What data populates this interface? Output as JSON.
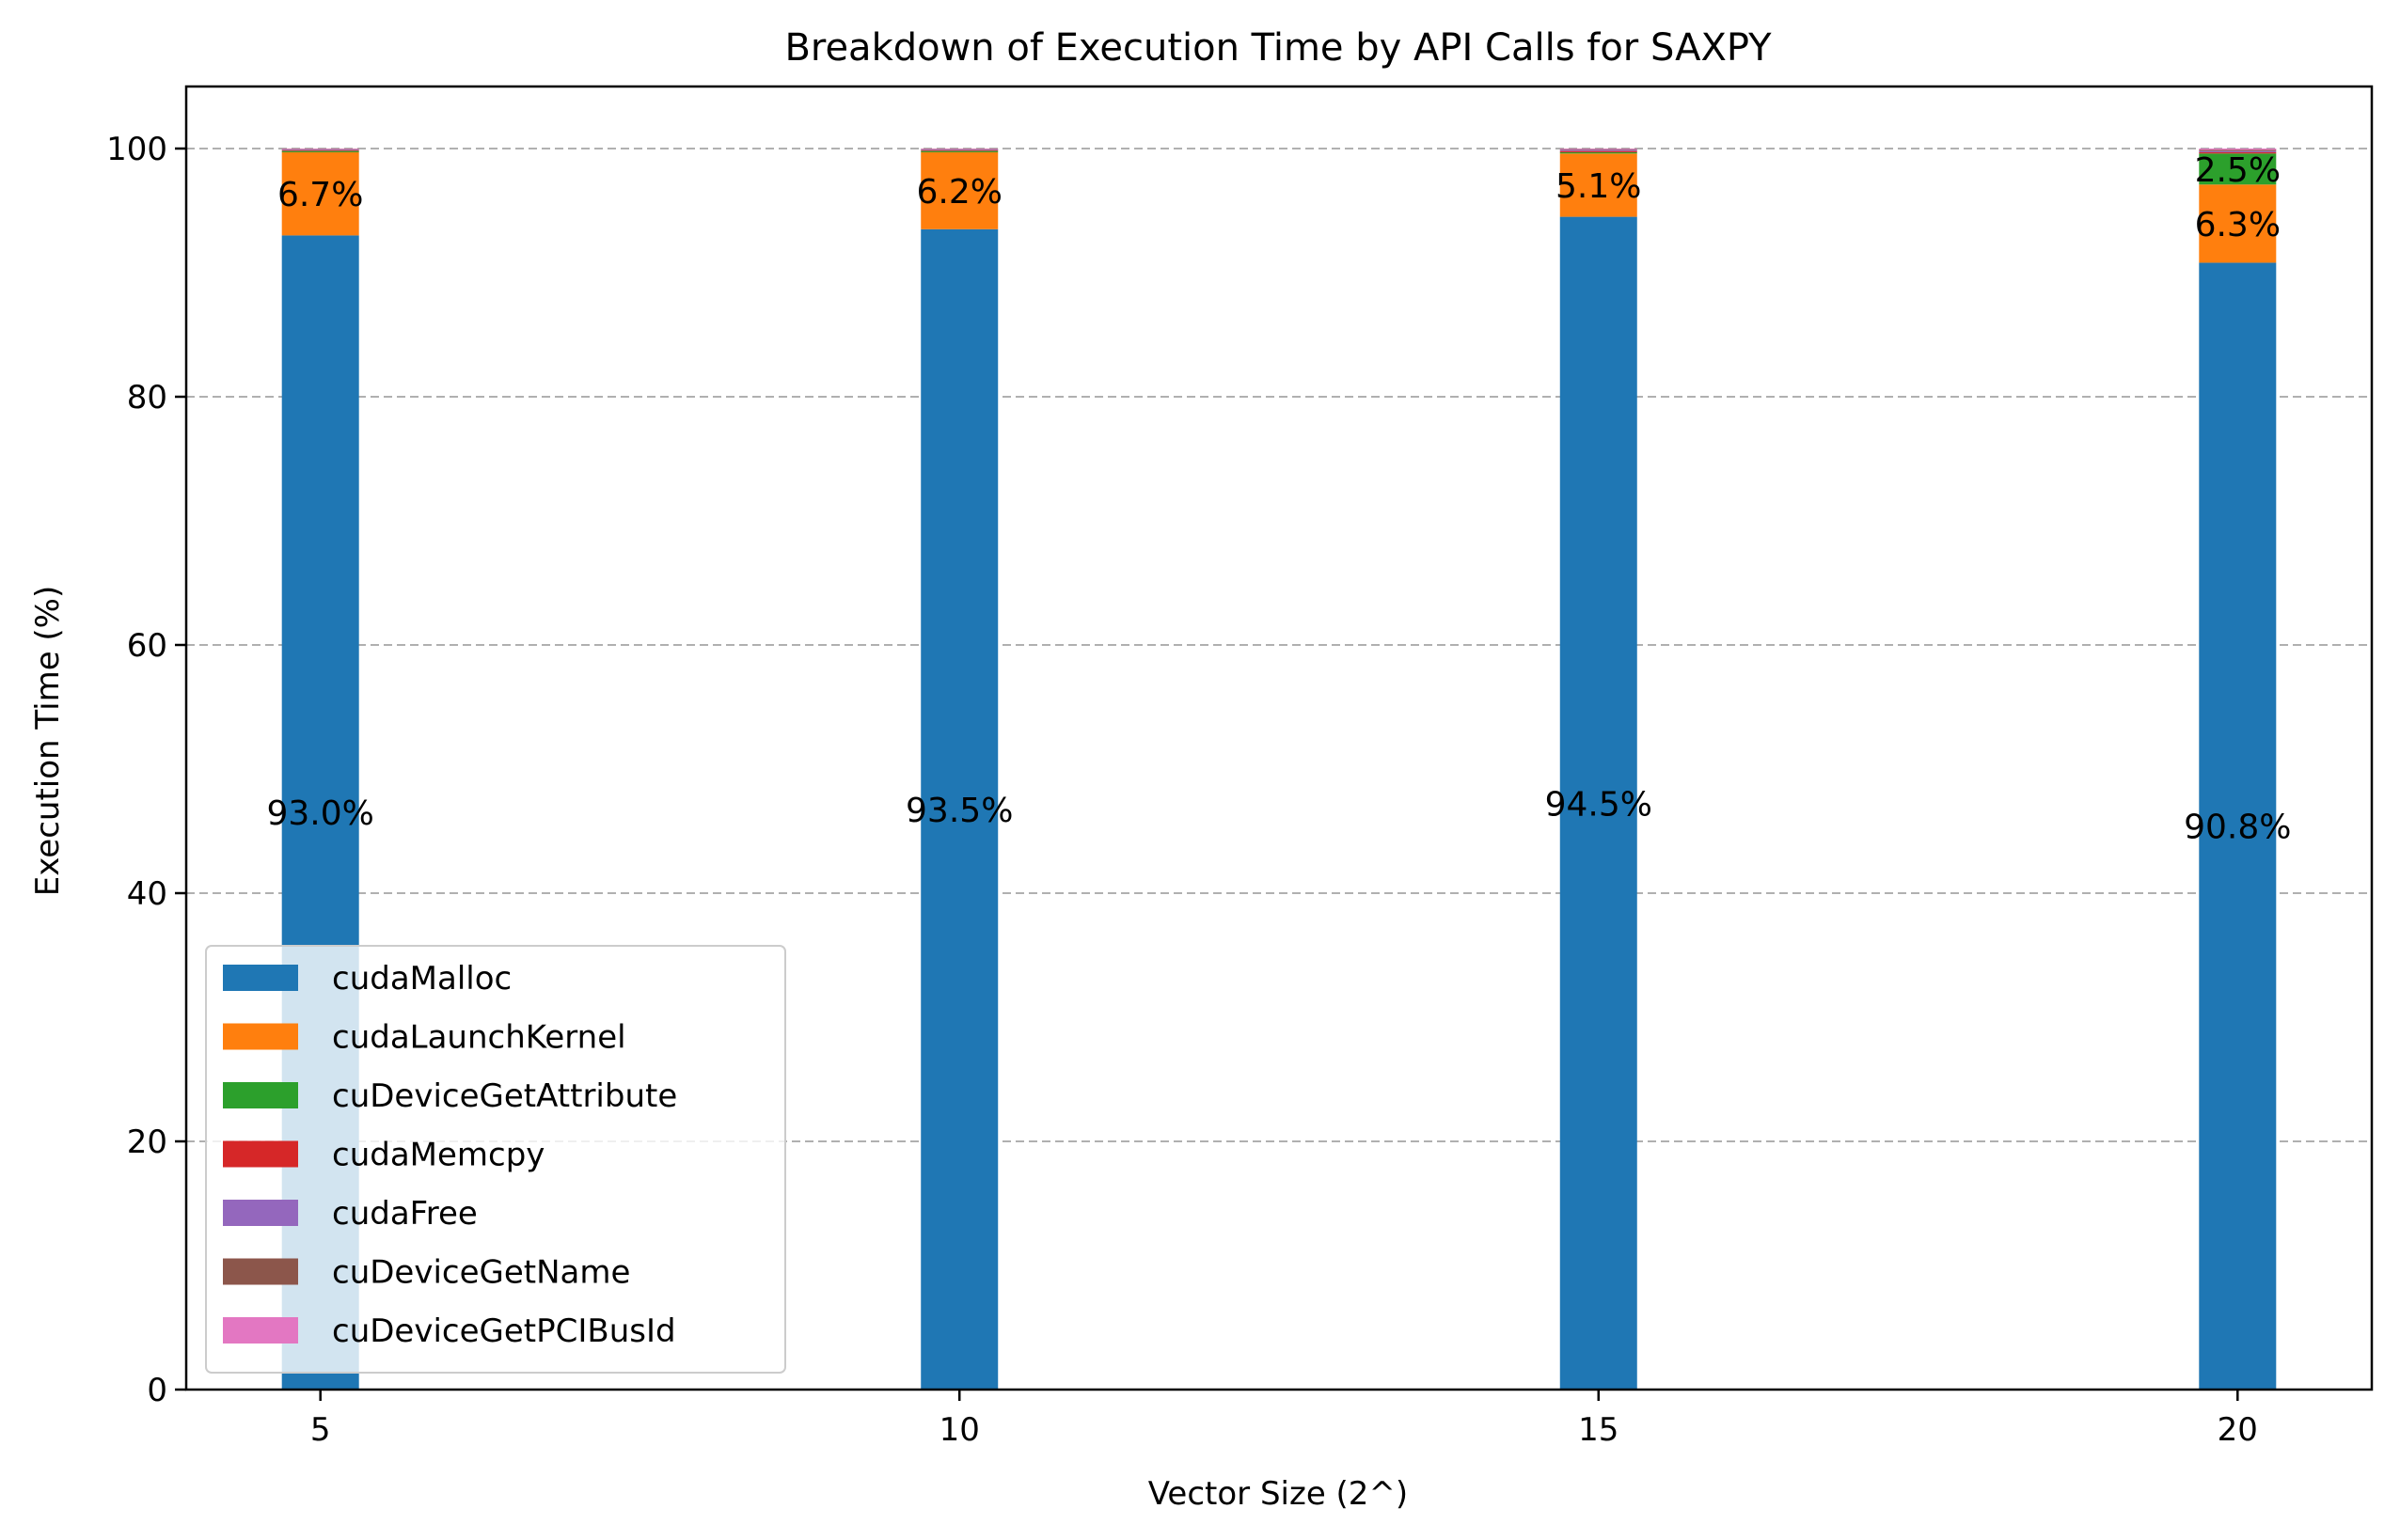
{
  "chart_data": {
    "type": "bar",
    "stacked": true,
    "title": "Breakdown of Execution Time by API Calls for SAXPY",
    "xlabel": "Vector Size (2^)",
    "ylabel": "Execution Time (%)",
    "categories": [
      "5",
      "10",
      "15",
      "20"
    ],
    "x": [
      5,
      10,
      15,
      20
    ],
    "xlim": [
      3.95,
      21.05
    ],
    "ylim": [
      0,
      105
    ],
    "yticks": [
      "0",
      "20",
      "40",
      "60",
      "80",
      "100"
    ],
    "grid": "y, dashed",
    "legend_position": "lower-left",
    "series": [
      {
        "name": "cudaMalloc",
        "color": "#1f77b4",
        "values": [
          93.0,
          93.5,
          94.5,
          90.8
        ],
        "labels": [
          "93.0%",
          "93.5%",
          "94.5%",
          "90.8%"
        ]
      },
      {
        "name": "cudaLaunchKernel",
        "color": "#ff7f0e",
        "values": [
          6.7,
          6.2,
          5.1,
          6.3
        ],
        "labels": [
          "6.7%",
          "6.2%",
          "5.1%",
          "6.3%"
        ]
      },
      {
        "name": "cuDeviceGetAttribute",
        "color": "#2ca02c",
        "values": [
          0.1,
          0.1,
          0.1,
          2.5
        ],
        "labels": [
          "",
          "",
          "",
          "2.5%"
        ]
      },
      {
        "name": "cudaMemcpy",
        "color": "#d62728",
        "values": [
          0.05,
          0.05,
          0.1,
          0.1
        ],
        "labels": [
          "",
          "",
          "",
          ""
        ]
      },
      {
        "name": "cudaFree",
        "color": "#9467bd",
        "values": [
          0.05,
          0.05,
          0.1,
          0.1
        ],
        "labels": [
          "",
          "",
          "",
          ""
        ]
      },
      {
        "name": "cuDeviceGetName",
        "color": "#8c564b",
        "values": [
          0.05,
          0.05,
          0.05,
          0.1
        ],
        "labels": [
          "",
          "",
          "",
          ""
        ]
      },
      {
        "name": "cuDeviceGetPCIBusId",
        "color": "#e377c2",
        "values": [
          0.05,
          0.05,
          0.05,
          0.1
        ],
        "labels": [
          "",
          "",
          "",
          ""
        ]
      }
    ]
  }
}
